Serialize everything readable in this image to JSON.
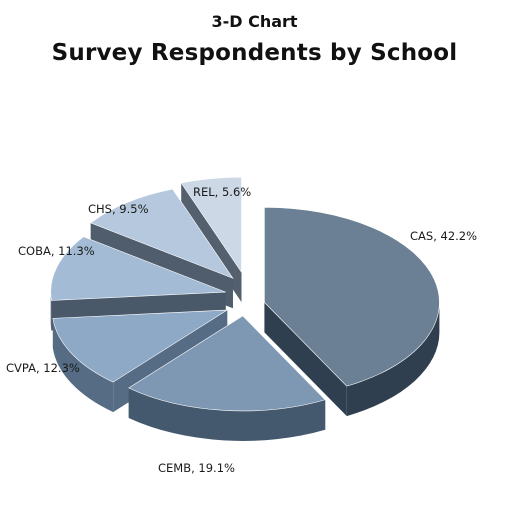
{
  "title": "3-D Chart",
  "subtitle": "Survey Respondents by School",
  "chart_data": {
    "type": "pie",
    "title": "Survey Respondents by School",
    "style": "3-D exploded pie",
    "slices": [
      {
        "label": "CAS",
        "value": 42.2,
        "display": "CAS, 42.2%",
        "color": "#6b7f95",
        "side": "#2f3f50"
      },
      {
        "label": "CEMB",
        "value": 19.1,
        "display": "CEMB, 19.1%",
        "color": "#7e98b4",
        "side": "#44586e"
      },
      {
        "label": "CVPA",
        "value": 12.3,
        "display": "CVPA, 12.3%",
        "color": "#8ea9c6",
        "side": "#566c84"
      },
      {
        "label": "COBA",
        "value": 11.3,
        "display": "COBA, 11.3%",
        "color": "#a3bbd4",
        "side": "#4a596a"
      },
      {
        "label": "CHS",
        "value": 9.5,
        "display": "CHS, 9.5%",
        "color": "#b5c8dd",
        "side": "#4f5d6d"
      },
      {
        "label": "REL",
        "value": 5.6,
        "display": "REL, 5.6%",
        "color": "#ccd8e6",
        "side": "#55606e"
      }
    ]
  }
}
